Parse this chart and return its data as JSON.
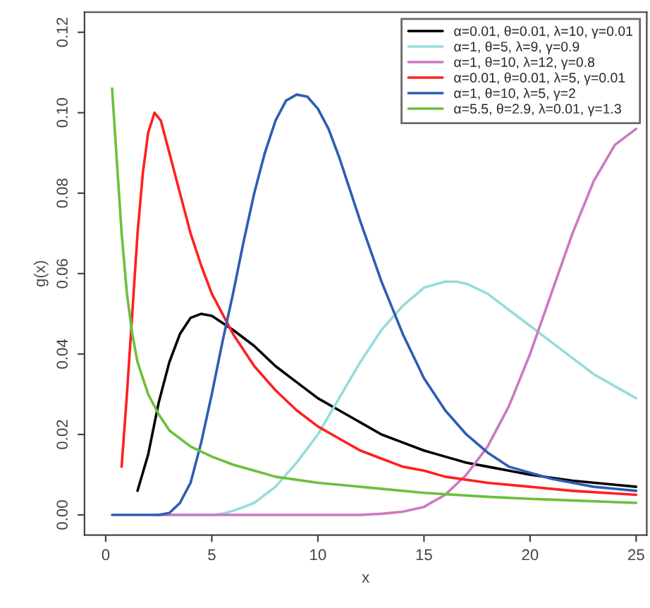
{
  "chart_data": {
    "type": "line",
    "xlabel": "x",
    "ylabel": "g(x)",
    "xlim": [
      -1.0,
      25.5
    ],
    "ylim": [
      -0.005,
      0.125
    ],
    "xticks": [
      0,
      5,
      10,
      15,
      20,
      25
    ],
    "yticks": [
      {
        "value": 0,
        "label": "0.00"
      },
      {
        "value": 0.02,
        "label": "0.02"
      },
      {
        "value": 0.04,
        "label": "0.04"
      },
      {
        "value": 0.06,
        "label": "0.06"
      },
      {
        "value": 0.08,
        "label": "0.08"
      },
      {
        "value": 0.1,
        "label": "0.10"
      },
      {
        "value": 0.12,
        "label": "0.12"
      }
    ],
    "grid": false,
    "legend": "top right",
    "line_style": "solid",
    "series": [
      {
        "name": "α=0.01, θ=0.01, λ=10, γ=0.01",
        "color": "#000000",
        "x": [
          1.5,
          2,
          2.5,
          3,
          3.5,
          4,
          4.5,
          5,
          6,
          7,
          8,
          9,
          10,
          11,
          12,
          13,
          14,
          15,
          16,
          17,
          18,
          19,
          20,
          22,
          24,
          25
        ],
        "values": [
          0.006,
          0.015,
          0.028,
          0.038,
          0.045,
          0.049,
          0.05,
          0.0495,
          0.046,
          0.042,
          0.037,
          0.033,
          0.029,
          0.026,
          0.023,
          0.02,
          0.018,
          0.016,
          0.0145,
          0.013,
          0.012,
          0.011,
          0.01,
          0.0085,
          0.0075,
          0.007
        ]
      },
      {
        "name": "α=1, θ=5, λ=9, γ=0.9",
        "color": "#96dcdc",
        "x": [
          2.3,
          5,
          5.5,
          6,
          7,
          8,
          9,
          10,
          11,
          12,
          13,
          14,
          15,
          16,
          16.5,
          17,
          18,
          19,
          20,
          21,
          22,
          23,
          24,
          25
        ],
        "values": [
          0,
          0,
          0.0003,
          0.001,
          0.003,
          0.007,
          0.013,
          0.02,
          0.029,
          0.038,
          0.046,
          0.052,
          0.0565,
          0.058,
          0.058,
          0.0575,
          0.055,
          0.051,
          0.047,
          0.043,
          0.039,
          0.035,
          0.032,
          0.029
        ]
      },
      {
        "name": "α=1, θ=10, λ=12, γ=0.8",
        "color": "#cc79c0",
        "x": [
          2.3,
          10,
          12,
          13,
          14,
          15,
          16,
          17,
          18,
          19,
          20,
          21,
          22,
          23,
          24,
          25
        ],
        "values": [
          0,
          0,
          0,
          0.0003,
          0.0008,
          0.002,
          0.005,
          0.01,
          0.017,
          0.027,
          0.04,
          0.055,
          0.07,
          0.083,
          0.092,
          0.096
        ]
      },
      {
        "name": "α=0.01, θ=0.01, λ=5, γ=0.01",
        "color": "#ff2020",
        "x": [
          0.75,
          1,
          1.25,
          1.5,
          1.75,
          2,
          2.3,
          2.6,
          3,
          3.5,
          4,
          4.5,
          5,
          6,
          7,
          8,
          9,
          10,
          11,
          12,
          13,
          14,
          15,
          16,
          18,
          20,
          22,
          25
        ],
        "values": [
          0.012,
          0.03,
          0.05,
          0.07,
          0.085,
          0.095,
          0.1,
          0.098,
          0.09,
          0.08,
          0.07,
          0.062,
          0.055,
          0.045,
          0.037,
          0.031,
          0.026,
          0.022,
          0.019,
          0.016,
          0.014,
          0.012,
          0.011,
          0.0095,
          0.008,
          0.007,
          0.006,
          0.005
        ]
      },
      {
        "name": "α=1, θ=10, λ=5, γ=2",
        "color": "#2d5db4",
        "x": [
          0.3,
          2.5,
          3,
          3.5,
          4,
          4.5,
          5,
          5.5,
          6,
          6.5,
          7,
          7.5,
          8,
          8.5,
          9,
          9.5,
          10,
          10.5,
          11,
          12,
          13,
          14,
          15,
          16,
          17,
          18,
          19,
          20,
          21,
          22,
          23,
          24,
          25
        ],
        "values": [
          0,
          0,
          0.0005,
          0.003,
          0.008,
          0.018,
          0.03,
          0.043,
          0.055,
          0.068,
          0.08,
          0.09,
          0.098,
          0.103,
          0.1045,
          0.104,
          0.101,
          0.096,
          0.089,
          0.073,
          0.058,
          0.045,
          0.034,
          0.026,
          0.02,
          0.0155,
          0.012,
          0.0105,
          0.009,
          0.008,
          0.007,
          0.0065,
          0.006
        ]
      },
      {
        "name": "α=5.5, θ=2.9, λ=0.01, γ=1.3",
        "color": "#6cbf3c",
        "x": [
          0.3,
          0.5,
          0.75,
          1,
          1.25,
          1.5,
          2,
          2.5,
          3,
          4,
          5,
          6,
          7,
          8,
          10,
          12,
          15,
          18,
          20,
          25
        ],
        "values": [
          0.106,
          0.09,
          0.07,
          0.055,
          0.045,
          0.038,
          0.03,
          0.025,
          0.021,
          0.017,
          0.0145,
          0.0125,
          0.011,
          0.0095,
          0.008,
          0.007,
          0.0055,
          0.0045,
          0.004,
          0.003
        ]
      }
    ]
  }
}
